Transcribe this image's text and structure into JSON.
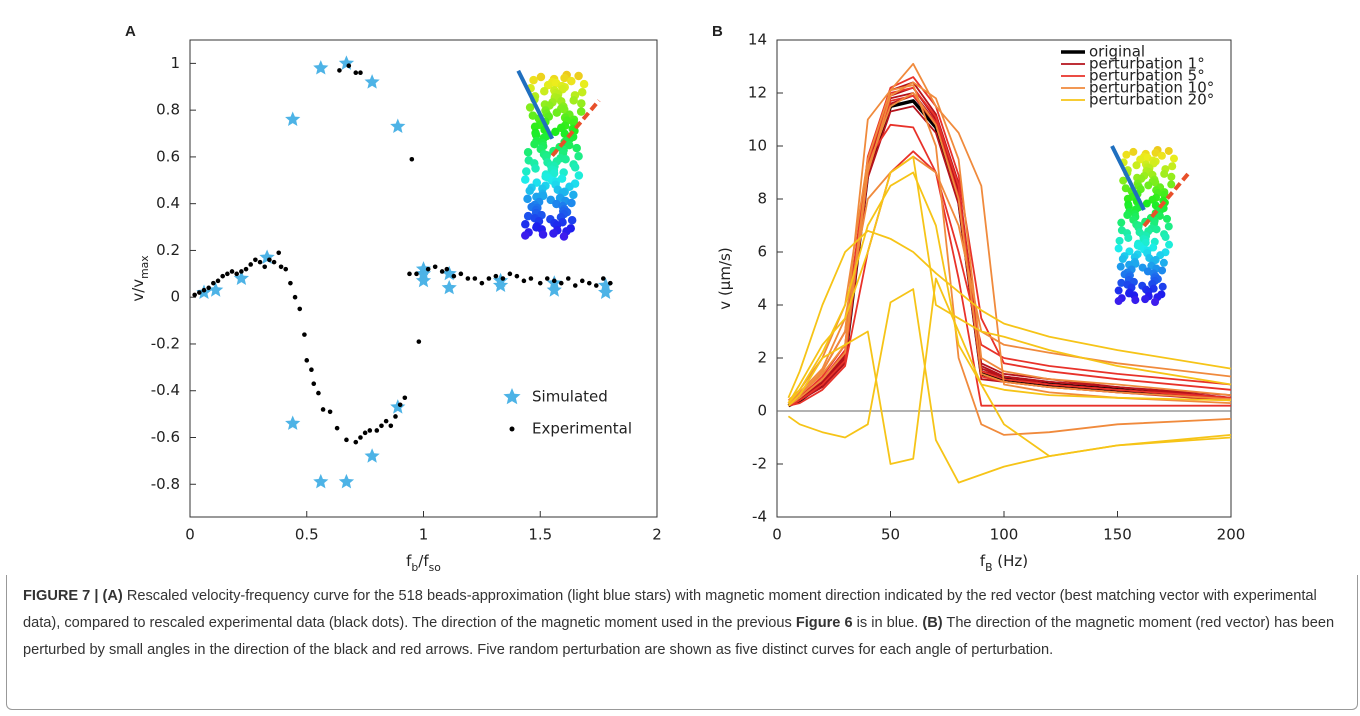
{
  "chart_data": [
    {
      "type": "scatter",
      "panel": "A",
      "xlabel": [
        {
          "text": "f"
        },
        {
          "text": "b",
          "sub": true
        },
        {
          "text": "/f"
        },
        {
          "text": "so",
          "sub": true
        }
      ],
      "ylabel": [
        {
          "text": "v/v"
        },
        {
          "text": "max",
          "sub": true
        }
      ],
      "xlim": [
        0,
        2
      ],
      "xticks": [
        0,
        0.5,
        1,
        1.5,
        2
      ],
      "ylim": [
        -0.94,
        1.1
      ],
      "yticks": [
        -0.8,
        -0.6,
        -0.4,
        -0.2,
        0,
        0.2,
        0.4,
        0.6,
        0.8,
        1
      ],
      "legend": "lower right",
      "series": [
        {
          "name": "Simulated",
          "color": "#4db3e6",
          "marker": "star",
          "x": [
            0.06,
            0.11,
            0.22,
            0.33,
            0.44,
            0.44,
            0.56,
            0.56,
            0.67,
            0.67,
            0.78,
            0.78,
            0.89,
            0.89,
            1,
            1,
            1,
            1.11,
            1.11,
            1.33,
            1.33,
            1.56,
            1.56,
            1.78,
            1.78
          ],
          "values": [
            0.02,
            0.03,
            0.08,
            0.17,
            0.76,
            -0.54,
            0.98,
            -0.79,
            1,
            -0.79,
            0.92,
            -0.68,
            0.73,
            -0.47,
            0.07,
            0.1,
            0.12,
            0.04,
            0.1,
            0.05,
            0.07,
            0.03,
            0.06,
            0.02,
            0.05
          ]
        },
        {
          "name": "Experimental",
          "color": "#000000",
          "marker": "dot",
          "x": [
            0.02,
            0.04,
            0.06,
            0.08,
            0.1,
            0.12,
            0.14,
            0.16,
            0.18,
            0.2,
            0.22,
            0.24,
            0.26,
            0.28,
            0.3,
            0.32,
            0.34,
            0.36,
            0.38,
            0.39,
            0.41,
            0.43,
            0.45,
            0.47,
            0.49,
            0.5,
            0.52,
            0.53,
            0.55,
            0.57,
            0.6,
            0.63,
            0.67,
            0.71,
            0.73,
            0.75,
            0.77,
            0.8,
            0.82,
            0.84,
            0.86,
            0.88,
            0.9,
            0.92,
            0.98,
            0.64,
            0.68,
            0.71,
            0.73,
            0.95,
            0.94,
            0.97,
            1.02,
            1.05,
            1.08,
            1.1,
            1.13,
            1.16,
            1.19,
            1.22,
            1.25,
            1.28,
            1.31,
            1.34,
            1.37,
            1.4,
            1.43,
            1.46,
            1.5,
            1.53,
            1.56,
            1.59,
            1.62,
            1.65,
            1.68,
            1.71,
            1.74,
            1.77,
            1.8
          ],
          "values": [
            0.01,
            0.02,
            0.03,
            0.04,
            0.06,
            0.07,
            0.09,
            0.1,
            0.11,
            0.1,
            0.11,
            0.12,
            0.14,
            0.16,
            0.15,
            0.13,
            0.16,
            0.15,
            0.19,
            0.13,
            0.12,
            0.06,
            0,
            -0.05,
            -0.16,
            -0.27,
            -0.31,
            -0.37,
            -0.41,
            -0.48,
            -0.49,
            -0.56,
            -0.61,
            -0.62,
            -0.6,
            -0.58,
            -0.57,
            -0.57,
            -0.55,
            -0.53,
            -0.55,
            -0.51,
            -0.46,
            -0.43,
            -0.19,
            0.97,
            0.99,
            0.96,
            0.96,
            0.59,
            0.1,
            0.1,
            0.12,
            0.13,
            0.11,
            0.12,
            0.09,
            0.1,
            0.08,
            0.08,
            0.06,
            0.08,
            0.09,
            0.08,
            0.1,
            0.09,
            0.07,
            0.08,
            0.06,
            0.08,
            0.07,
            0.06,
            0.08,
            0.05,
            0.07,
            0.06,
            0.05,
            0.08,
            0.06
          ]
        }
      ]
    },
    {
      "type": "line",
      "panel": "B",
      "xlabel": [
        {
          "text": "f"
        },
        {
          "text": "B",
          "sub": true
        },
        {
          "text": " (Hz)"
        }
      ],
      "ylabel": [
        {
          "text": "v (μm/s)"
        }
      ],
      "xlim": [
        0,
        200
      ],
      "xticks": [
        0,
        50,
        100,
        150,
        200
      ],
      "ylim": [
        -4,
        14
      ],
      "yticks": [
        -4,
        -2,
        0,
        2,
        4,
        6,
        8,
        10,
        12,
        14
      ],
      "zeroline": true,
      "legend": "upper right",
      "x": [
        5,
        10,
        20,
        30,
        40,
        50,
        60,
        70,
        80,
        90,
        100,
        120,
        150,
        200
      ],
      "series": [
        {
          "name": "original",
          "color": "#000000",
          "width": 3.5,
          "curves": [
            [
              0.2,
              0.4,
              1.0,
              1.9,
              9.0,
              11.5,
              11.7,
              10.7,
              8.0,
              1.4,
              1.2,
              1.0,
              0.8,
              0.45
            ]
          ]
        },
        {
          "name": "perturbation 1°",
          "color": "#b5121b",
          "width": 1.8,
          "curves": [
            [
              0.2,
              0.4,
              1.1,
              2.0,
              9.2,
              11.8,
              12.0,
              10.9,
              8.3,
              1.6,
              1.3,
              1.1,
              0.9,
              0.5
            ],
            [
              0.3,
              0.5,
              1.2,
              2.2,
              9.5,
              12.1,
              12.4,
              11.2,
              8.6,
              1.8,
              1.4,
              1.2,
              0.9,
              0.6
            ],
            [
              0.2,
              0.4,
              0.9,
              1.8,
              8.8,
              11.3,
              11.5,
              10.5,
              7.8,
              1.2,
              1.1,
              0.9,
              0.7,
              0.4
            ],
            [
              0.2,
              0.4,
              1.0,
              2.0,
              9.0,
              11.6,
              11.9,
              10.8,
              8.2,
              1.5,
              1.3,
              1.0,
              0.8,
              0.5
            ],
            [
              0.3,
              0.5,
              1.1,
              2.1,
              9.3,
              11.9,
              12.2,
              11.0,
              8.4,
              1.7,
              1.3,
              1.1,
              0.9,
              0.5
            ]
          ]
        },
        {
          "name": "perturbation 5°",
          "color": "#e8322a",
          "width": 1.8,
          "curves": [
            [
              0.3,
              0.6,
              1.5,
              3.0,
              9.5,
              10.8,
              10.7,
              9.0,
              6.0,
              2.5,
              2.0,
              1.7,
              1.4,
              1.0
            ],
            [
              0.2,
              0.5,
              1.3,
              2.5,
              9.6,
              12.2,
              12.6,
              11.5,
              8.9,
              3.5,
              1.8,
              1.5,
              1.2,
              0.8
            ],
            [
              0.2,
              0.4,
              1.0,
              1.9,
              9.0,
              11.7,
              11.9,
              10.9,
              8.1,
              1.3,
              1.1,
              0.9,
              0.7,
              0.45
            ],
            [
              0.3,
              0.6,
              1.2,
              2.3,
              9.4,
              12.0,
              12.2,
              11.1,
              8.5,
              1.5,
              1.2,
              1.0,
              0.8,
              0.5
            ],
            [
              0.2,
              0.3,
              0.8,
              1.7,
              6.0,
              9.0,
              9.8,
              9.0,
              5.0,
              0.2,
              0.2,
              0.2,
              0.2,
              0.2
            ]
          ]
        },
        {
          "name": "perturbation 10°",
          "color": "#f08a3c",
          "width": 1.8,
          "curves": [
            [
              0.4,
              0.8,
              2.0,
              4.0,
              9.5,
              12.1,
              13.1,
              11.5,
              10.5,
              8.5,
              1.0,
              0.7,
              0.5,
              0.3
            ],
            [
              0.3,
              0.7,
              1.6,
              3.5,
              8.0,
              9.0,
              9.6,
              9.0,
              7.0,
              3.0,
              2.5,
              2.2,
              1.8,
              1.3
            ],
            [
              0.3,
              0.6,
              1.5,
              3.0,
              11.0,
              12.1,
              12.3,
              10.0,
              2.0,
              -0.5,
              -0.9,
              -0.8,
              -0.5,
              -0.3
            ],
            [
              0.2,
              0.5,
              1.2,
              2.2,
              9.0,
              11.9,
              12.4,
              11.8,
              9.5,
              2.0,
              1.5,
              1.2,
              1.0,
              0.6
            ],
            [
              0.3,
              0.6,
              1.4,
              2.5,
              9.2,
              11.5,
              12.0,
              10.8,
              8.0,
              1.4,
              1.1,
              0.9,
              0.7,
              0.45
            ]
          ]
        },
        {
          "name": "perturbation 20°",
          "color": "#f6c417",
          "width": 1.8,
          "curves": [
            [
              0.5,
              1.5,
              4.0,
              6.0,
              6.8,
              6.5,
              6.0,
              5.2,
              4.5,
              3.8,
              3.3,
              2.8,
              2.3,
              1.6
            ],
            [
              -0.2,
              -0.5,
              -0.8,
              -1.0,
              -0.5,
              4.1,
              4.6,
              -1.1,
              -2.7,
              -2.4,
              -2.1,
              -1.7,
              -1.3,
              -0.9
            ],
            [
              0.3,
              1.0,
              2.5,
              3.5,
              6.0,
              9.0,
              9.6,
              4.0,
              3.5,
              3.0,
              2.8,
              2.3,
              1.7,
              1.0
            ],
            [
              0.2,
              0.6,
              2.0,
              2.5,
              3.0,
              -2.0,
              -1.8,
              5.0,
              3.0,
              1.0,
              -0.5,
              -1.7,
              -1.3,
              -1.0
            ],
            [
              0.3,
              0.8,
              2.2,
              4.0,
              7.0,
              8.5,
              9.0,
              7.0,
              2.5,
              1.0,
              0.8,
              0.6,
              0.5,
              0.4
            ]
          ]
        }
      ]
    }
  ],
  "caption": [
    {
      "text": "FIGURE 7 | ",
      "bold": true
    },
    {
      "text": "(A)",
      "bold": true
    },
    {
      "text": " Rescaled velocity-frequency curve for the 518 beads-approximation (light blue stars) with magnetic moment direction indicated by the red vector (best matching vector with experimental data), compared to rescaled experimental data (black dots). The direction of the magnetic moment used in the previous "
    },
    {
      "text": "Figure 6",
      "bold": true
    },
    {
      "text": " is in blue. "
    },
    {
      "text": "(B)",
      "bold": true
    },
    {
      "text": " The direction of the magnetic moment (red vector) has been perturbed by small angles in the direction of the black and red arrows. Five random perturbation are shown as five distinct curves for each angle of perturbation."
    }
  ]
}
